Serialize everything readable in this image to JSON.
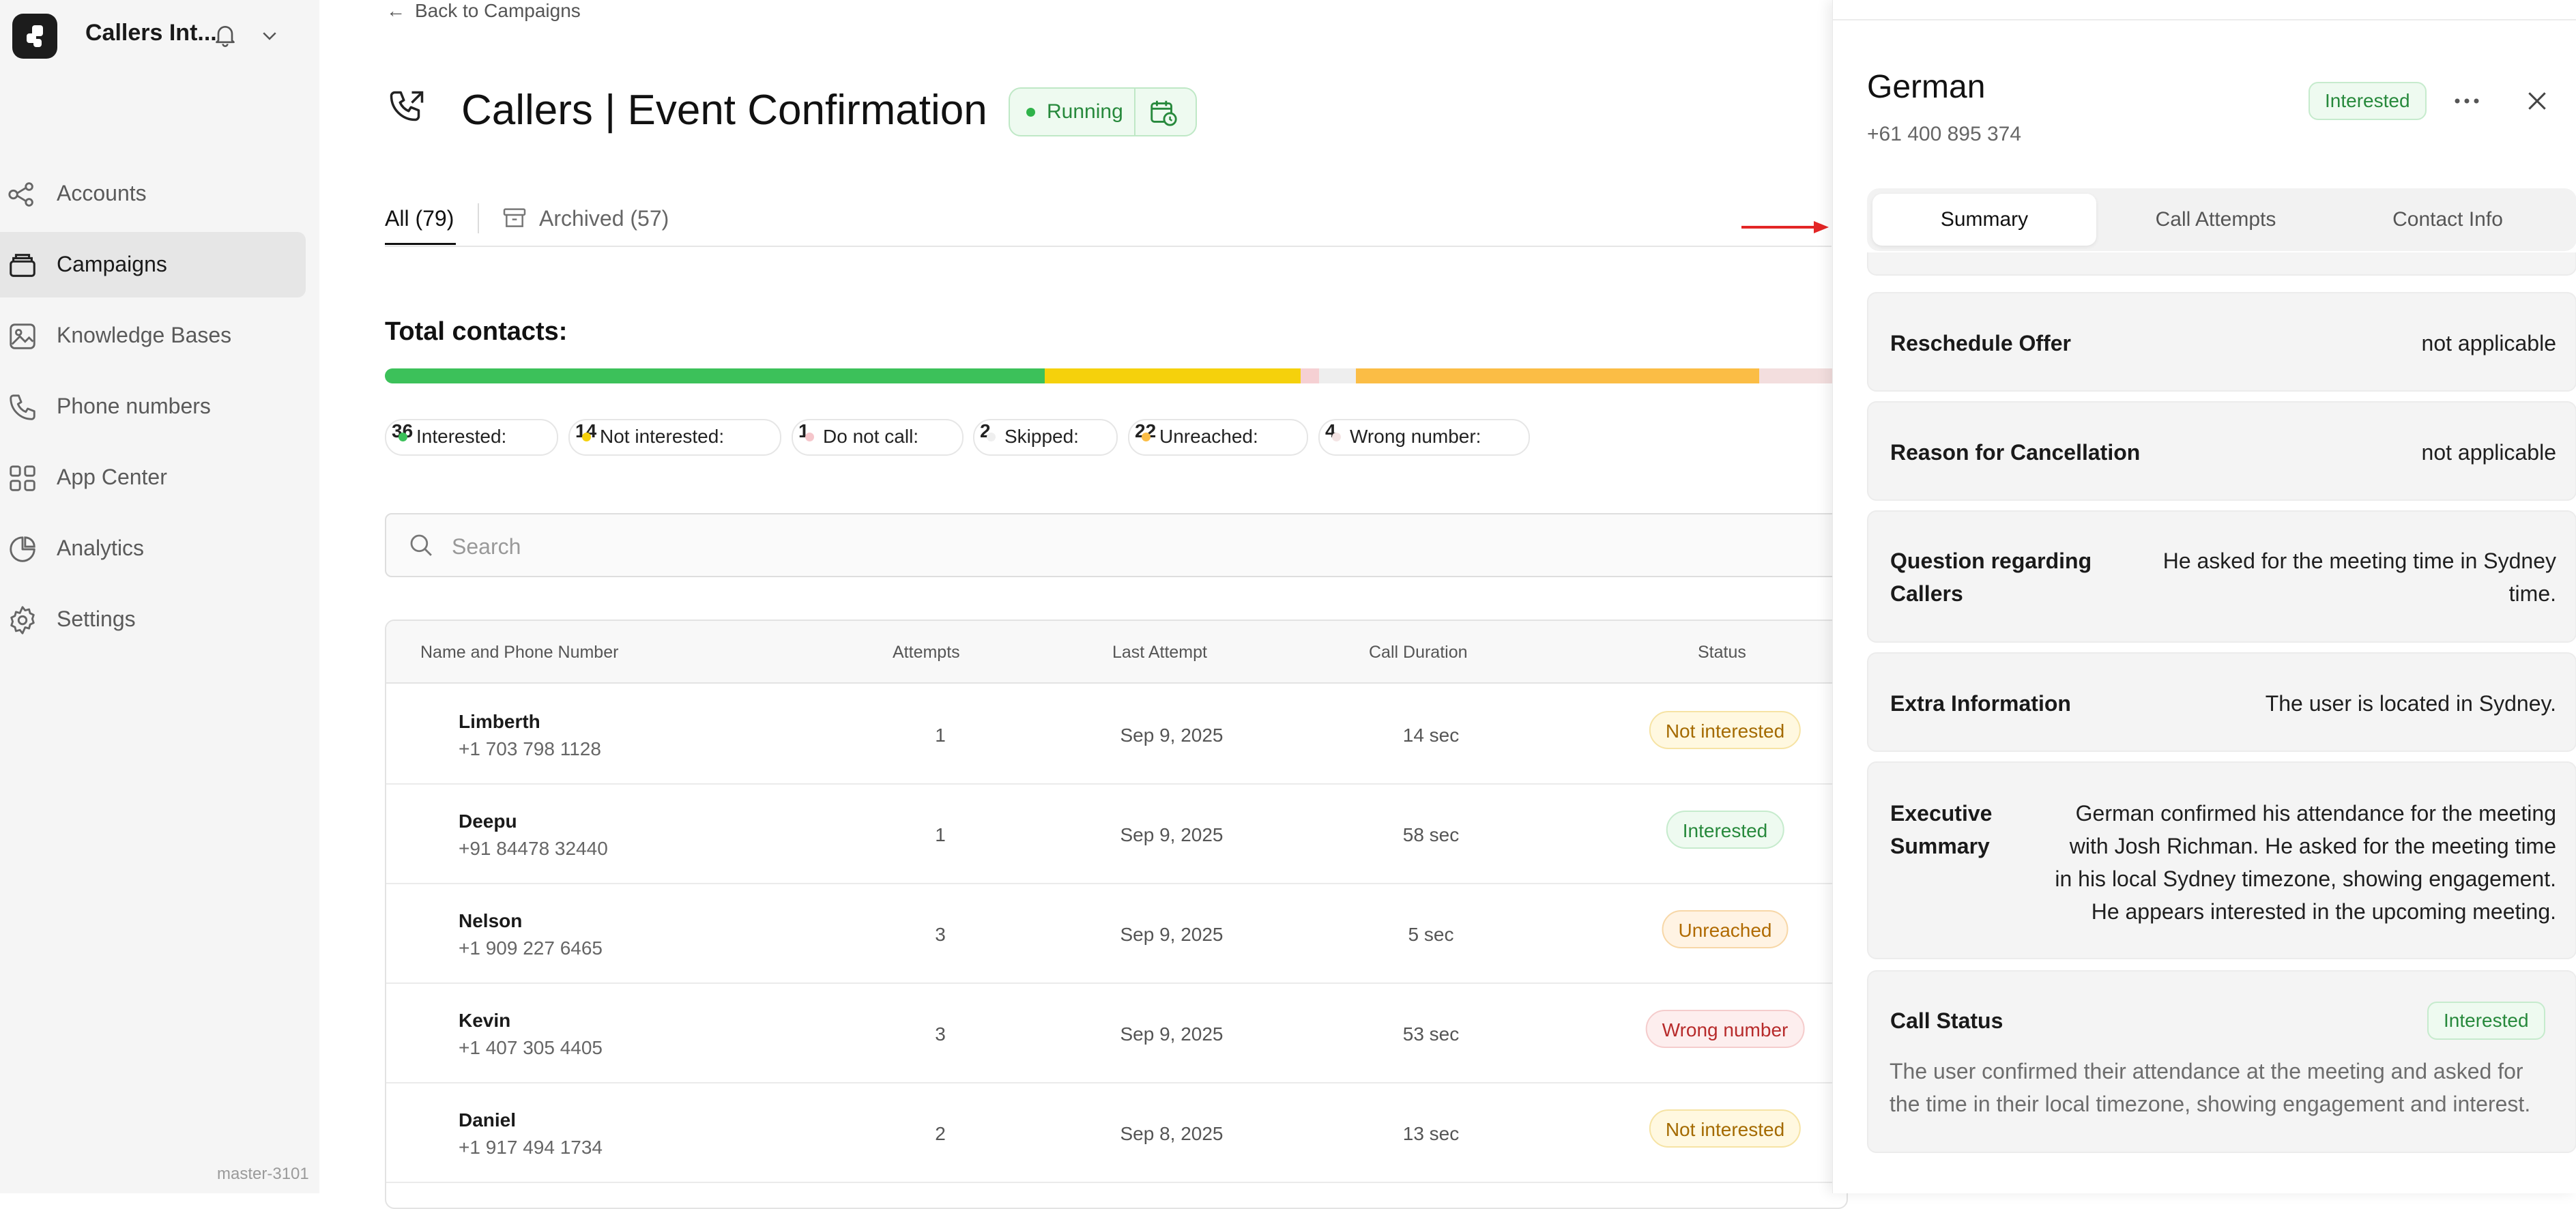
{
  "workspace": {
    "name": "Callers Int..."
  },
  "sidebar": {
    "items": [
      {
        "label": "Accounts",
        "icon": "accounts-icon"
      },
      {
        "label": "Campaigns",
        "icon": "campaigns-icon",
        "active": true
      },
      {
        "label": "Knowledge Bases",
        "icon": "knowledge-bases-icon"
      },
      {
        "label": "Phone numbers",
        "icon": "phone-icon"
      },
      {
        "label": "App Center",
        "icon": "app-center-icon"
      },
      {
        "label": "Analytics",
        "icon": "analytics-icon"
      },
      {
        "label": "Settings",
        "icon": "gear-icon"
      }
    ],
    "version": "master-3101"
  },
  "main": {
    "back_label": "Back to Campaigns",
    "title": "Callers | Event Confirmation",
    "status": "Running",
    "tabs": [
      {
        "label": "All (79)"
      },
      {
        "label": "Archived (57)"
      }
    ],
    "total_label": "Total contacts:",
    "segments": [
      {
        "name": "Interested",
        "count": 36,
        "color": "#3cc15a"
      },
      {
        "name": "Not interested",
        "count": 14,
        "color": "#f5d10c"
      },
      {
        "name": "Do not call",
        "count": 1,
        "color": "#f5d0d3"
      },
      {
        "name": "Skipped",
        "count": 2,
        "color": "#eeeeee"
      },
      {
        "name": "Unreached",
        "count": 22,
        "color": "#fbbd45"
      },
      {
        "name": "Wrong number",
        "count": 4,
        "color": "#f3dede"
      }
    ],
    "chips": [
      {
        "label": "Interested:",
        "count": "36"
      },
      {
        "label": "Not interested:",
        "count": "14"
      },
      {
        "label": "Do not call:",
        "count": "1"
      },
      {
        "label": "Skipped:",
        "count": "2"
      },
      {
        "label": "Unreached:",
        "count": "22"
      },
      {
        "label": "Wrong number:",
        "count": "4"
      }
    ],
    "search_placeholder": "Search",
    "table": {
      "headers": [
        "Name and Phone Number",
        "Attempts",
        "Last Attempt",
        "Call Duration",
        "Status"
      ],
      "rows": [
        {
          "name": "Limberth",
          "phone": "+1 703 798 1128",
          "attempts": "1",
          "last": "Sep 9, 2025",
          "duration": "14 sec",
          "status": "Not interested"
        },
        {
          "name": "Deepu",
          "phone": "+91 84478 32440",
          "attempts": "1",
          "last": "Sep 9, 2025",
          "duration": "58 sec",
          "status": "Interested"
        },
        {
          "name": "Nelson",
          "phone": "+1 909 227 6465",
          "attempts": "3",
          "last": "Sep 9, 2025",
          "duration": "5 sec",
          "status": "Unreached"
        },
        {
          "name": "Kevin",
          "phone": "+1 407 305 4405",
          "attempts": "3",
          "last": "Sep 9, 2025",
          "duration": "53 sec",
          "status": "Wrong number"
        },
        {
          "name": "Daniel",
          "phone": "+1 917 494 1734",
          "attempts": "2",
          "last": "Sep 8, 2025",
          "duration": "13 sec",
          "status": "Not interested"
        }
      ]
    }
  },
  "panel": {
    "name": "German",
    "phone": "+61 400 895 374",
    "status_badge": "Interested",
    "tabs": [
      {
        "label": "Summary"
      },
      {
        "label": "Call Attempts"
      },
      {
        "label": "Contact Info"
      }
    ],
    "fields": [
      {
        "label": "Reschedule Offer",
        "value": "not applicable"
      },
      {
        "label": "Reason for Cancellation",
        "value": "not applicable"
      },
      {
        "label": "Question regarding Callers",
        "value": "He asked for the meeting time in Sydney time."
      },
      {
        "label": "Extra Information",
        "value": "The user is located in Sydney."
      },
      {
        "label": "Executive Summary",
        "value": "German confirmed his attendance for the meeting with Josh Richman. He asked for the meeting time in his local Sydney timezone, showing engagement. He appears interested in the upcoming meeting."
      }
    ],
    "call_status": {
      "label": "Call Status",
      "badge": "Interested",
      "text": "The user confirmed their attendance at the meeting and asked for the time in their local timezone, showing engagement and interest."
    }
  }
}
